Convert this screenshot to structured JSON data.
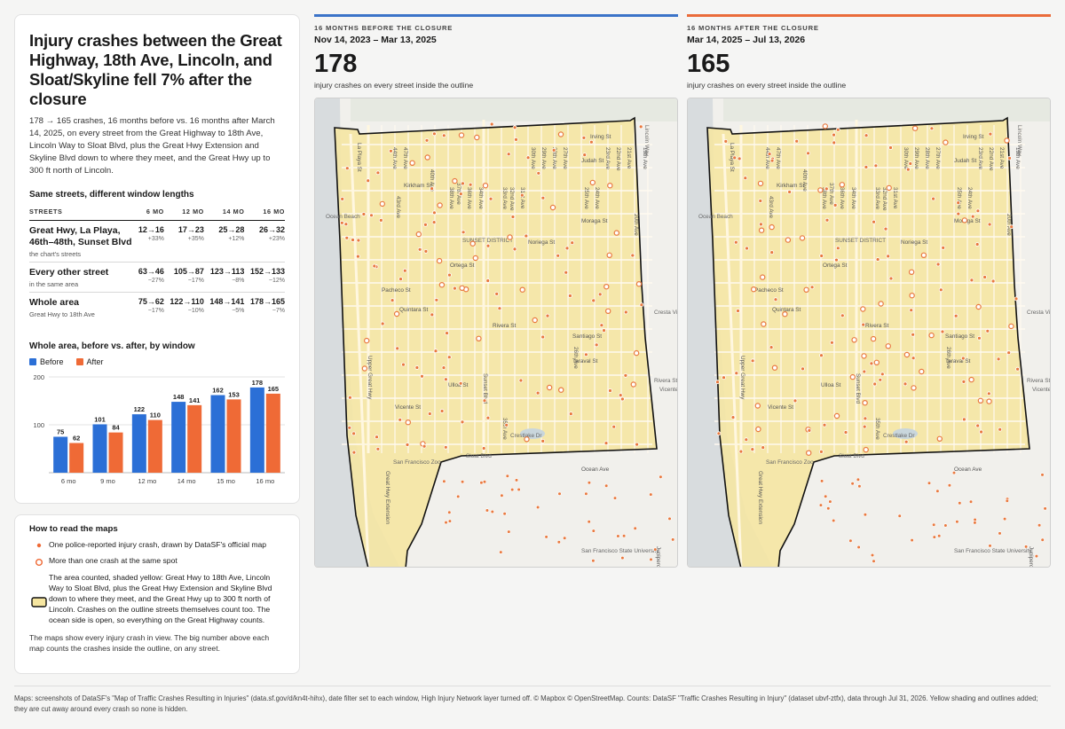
{
  "headline": "Injury crashes between the Great Highway, 18th Ave, Lincoln, and Sloat/Skyline fell 7% after the closure",
  "subtext": "178 → 165 crashes, 16 months before vs. 16 months after March 14, 2025, on every street from the Great Highway to 18th Ave, Lincoln Way to Sloat Blvd, plus the Great Hwy Extension and Skyline Blvd down to where they meet, and the Great Hwy up to 300 ft north of Lincoln.",
  "table": {
    "title": "Same streets, different window lengths",
    "headers": [
      "STREETS",
      "6 MO",
      "12 MO",
      "14 MO",
      "16 MO"
    ],
    "rows": [
      {
        "name": "Great Hwy, La Playa, 46th–48th, Sunset Blvd",
        "sub": "the chart's streets",
        "cells": [
          {
            "v": "12→16",
            "p": "+33%"
          },
          {
            "v": "17→23",
            "p": "+35%"
          },
          {
            "v": "25→28",
            "p": "+12%"
          },
          {
            "v": "26→32",
            "p": "+23%"
          }
        ]
      },
      {
        "name": "Every other street",
        "sub": "in the same area",
        "cells": [
          {
            "v": "63→46",
            "p": "−27%"
          },
          {
            "v": "105→87",
            "p": "−17%"
          },
          {
            "v": "123→113",
            "p": "−8%"
          },
          {
            "v": "152→133",
            "p": "−12%"
          }
        ]
      },
      {
        "name": "Whole area",
        "sub": "Great Hwy to 18th Ave",
        "cells": [
          {
            "v": "75→62",
            "p": "−17%"
          },
          {
            "v": "122→110",
            "p": "−10%"
          },
          {
            "v": "148→141",
            "p": "−5%"
          },
          {
            "v": "178→165",
            "p": "−7%"
          }
        ]
      }
    ]
  },
  "chart_data": {
    "type": "bar",
    "title": "Whole area, before vs. after, by window",
    "categories": [
      "6 mo",
      "9 mo",
      "12 mo",
      "14 mo",
      "15 mo",
      "16 mo"
    ],
    "series": [
      {
        "name": "Before",
        "values": [
          75,
          101,
          122,
          148,
          162,
          178
        ],
        "color": "#2b6fd6"
      },
      {
        "name": "After",
        "values": [
          62,
          84,
          110,
          141,
          153,
          165
        ],
        "color": "#ef6a36"
      }
    ],
    "y_ticks": [
      "100",
      "200"
    ],
    "ylim": [
      0,
      200
    ],
    "grid": true,
    "legend": "top-left"
  },
  "legend_box": {
    "title": "How to read the maps",
    "single": "One police-reported injury crash, drawn by DataSF's official map",
    "multi": "More than one crash at the same spot",
    "area": "The area counted, shaded yellow: Great Hwy to 18th Ave, Lincoln Way to Sloat Blvd, plus the Great Hwy Extension and Skyline Blvd down to where they meet, and the Great Hwy up to 300 ft north of Lincoln. Crashes on the outline streets themselves count too. The ocean side is open, so everything on the Great Highway counts.",
    "note": "The maps show every injury crash in view. The big number above each map counts the crashes inside the outline, on any street."
  },
  "panels": {
    "before": {
      "title": "16 MONTHS BEFORE THE CLOSURE",
      "dates": "Nov 14, 2023 – Mar 13, 2025",
      "count": "178",
      "desc": "injury crashes on every street inside the outline",
      "color": "#3b73c8"
    },
    "after": {
      "title": "16 MONTHS AFTER THE CLOSURE",
      "dates": "Mar 14, 2025 – Jul 13, 2026",
      "count": "165",
      "desc": "injury crashes on every street inside the outline",
      "color": "#ea6b3a"
    }
  },
  "map_labels": {
    "streets_h": [
      "Irving St",
      "Judah St",
      "Kirkham St",
      "Moraga St",
      "Noriega St",
      "Ortega St",
      "Pacheco St",
      "Quintara St",
      "Rivera St",
      "Santiago St",
      "Taraval St",
      "Ulloa St",
      "Vicente St",
      "Ocean Ave"
    ],
    "streets_v": [
      "La Playa St",
      "Upper Great Hwy",
      "Great Hwy Extension",
      "44th Ave",
      "47th Ave",
      "43rd Ave",
      "40th Ave",
      "38th Ave",
      "37th Ave",
      "36th Ave",
      "34th Ave",
      "33rd Ave",
      "32nd Ave",
      "31st Ave",
      "30th Ave",
      "29th Ave",
      "28th Ave",
      "27th Ave",
      "26th Ave",
      "25th Ave",
      "24th Ave",
      "23rd Ave",
      "22nd Ave",
      "21st Ave",
      "20th Ave",
      "19th Ave",
      "Sunset Blvd",
      "35th Ave",
      "Junipero Serra Blvd"
    ],
    "places": [
      "Ocean Beach",
      "SUNSET DISTRICT",
      "San Francisco Zoo",
      "San Francisco State University",
      "Lincoln Way",
      "Sloat Blvd",
      "Cresta Vista Dr",
      "Rivera St",
      "Vicente St",
      "Crestlake Dr"
    ]
  },
  "footer": "Maps: screenshots of DataSF's \"Map of Traffic Crashes Resulting in Injuries\" (data.sf.gov/d/kn4t-hihx), date filter set to each window, High Injury Network layer turned off. © Mapbox © OpenStreetMap. Counts: DataSF \"Traffic Crashes Resulting in Injury\" (dataset ubvf-ztfx), data through Jul 31, 2026. Yellow shading and outlines added; they are cut away around every crash so none is hidden."
}
